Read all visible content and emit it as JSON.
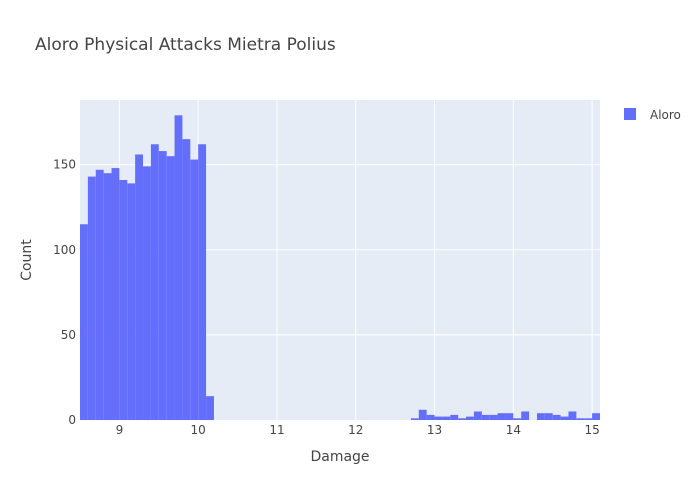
{
  "chart_data": {
    "type": "bar",
    "title": "Aloro Physical Attacks Mietra Polius",
    "xlabel": "Damage",
    "ylabel": "Count",
    "xlim": [
      8.5,
      15.1
    ],
    "ylim": [
      0,
      188
    ],
    "x_ticks": [
      9,
      10,
      11,
      12,
      13,
      14,
      15
    ],
    "y_ticks": [
      0,
      50,
      100,
      150
    ],
    "grid": true,
    "legend_position": "top-right",
    "bin_width": 0.1,
    "series": [
      {
        "name": "Aloro",
        "color": "#636efa",
        "bins": [
          {
            "x0": 8.5,
            "count": 115
          },
          {
            "x0": 8.6,
            "count": 143
          },
          {
            "x0": 8.7,
            "count": 147
          },
          {
            "x0": 8.8,
            "count": 145
          },
          {
            "x0": 8.9,
            "count": 148
          },
          {
            "x0": 9.0,
            "count": 141
          },
          {
            "x0": 9.1,
            "count": 139
          },
          {
            "x0": 9.2,
            "count": 156
          },
          {
            "x0": 9.3,
            "count": 149
          },
          {
            "x0": 9.4,
            "count": 162
          },
          {
            "x0": 9.5,
            "count": 158
          },
          {
            "x0": 9.6,
            "count": 155
          },
          {
            "x0": 9.7,
            "count": 179
          },
          {
            "x0": 9.8,
            "count": 165
          },
          {
            "x0": 9.9,
            "count": 153
          },
          {
            "x0": 10.0,
            "count": 162
          },
          {
            "x0": 10.1,
            "count": 14
          },
          {
            "x0": 12.7,
            "count": 1
          },
          {
            "x0": 12.8,
            "count": 6
          },
          {
            "x0": 12.9,
            "count": 3
          },
          {
            "x0": 13.0,
            "count": 2
          },
          {
            "x0": 13.1,
            "count": 2
          },
          {
            "x0": 13.2,
            "count": 3
          },
          {
            "x0": 13.3,
            "count": 1
          },
          {
            "x0": 13.4,
            "count": 2
          },
          {
            "x0": 13.5,
            "count": 5
          },
          {
            "x0": 13.6,
            "count": 3
          },
          {
            "x0": 13.7,
            "count": 3
          },
          {
            "x0": 13.8,
            "count": 4
          },
          {
            "x0": 13.9,
            "count": 4
          },
          {
            "x0": 14.0,
            "count": 1
          },
          {
            "x0": 14.1,
            "count": 5
          },
          {
            "x0": 14.3,
            "count": 4
          },
          {
            "x0": 14.4,
            "count": 4
          },
          {
            "x0": 14.5,
            "count": 3
          },
          {
            "x0": 14.6,
            "count": 2
          },
          {
            "x0": 14.7,
            "count": 5
          },
          {
            "x0": 14.8,
            "count": 1
          },
          {
            "x0": 14.9,
            "count": 1
          },
          {
            "x0": 15.0,
            "count": 4
          }
        ]
      }
    ]
  }
}
